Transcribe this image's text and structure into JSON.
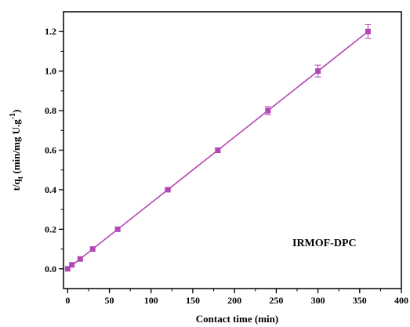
{
  "chart_data": {
    "type": "line",
    "title": "",
    "xlabel": "Contact time (min)",
    "ylabel": {
      "base": "t/q",
      "subscript": "t",
      "units_open": " (min/mg U.g",
      "superscript": "-1",
      "units_close": ")"
    },
    "xlim": [
      -5,
      400
    ],
    "ylim": [
      -0.1,
      1.3
    ],
    "x_ticks": [
      "0",
      "50",
      "100",
      "150",
      "200",
      "250",
      "300",
      "350",
      "400"
    ],
    "y_ticks": [
      "0.0",
      "0.2",
      "0.4",
      "0.6",
      "0.8",
      "1.0",
      "1.2"
    ],
    "grid": false,
    "legend": "none",
    "annotation": "IRMOF-DPC",
    "series": [
      {
        "color": "#b347b5",
        "marker": "square",
        "x": [
          0,
          5,
          15,
          30,
          60,
          120,
          180,
          240,
          300,
          360
        ],
        "y": [
          0.0,
          0.02,
          0.05,
          0.1,
          0.2,
          0.4,
          0.6,
          0.8,
          1.0,
          1.2
        ],
        "error": [
          0.0,
          0.0,
          0.0,
          0.0,
          0.0,
          0.005,
          0.01,
          0.02,
          0.03,
          0.035
        ]
      }
    ],
    "fit_line": {
      "color": "#b347b5",
      "x": [
        0,
        360
      ],
      "y": [
        0.0,
        1.2
      ]
    }
  }
}
